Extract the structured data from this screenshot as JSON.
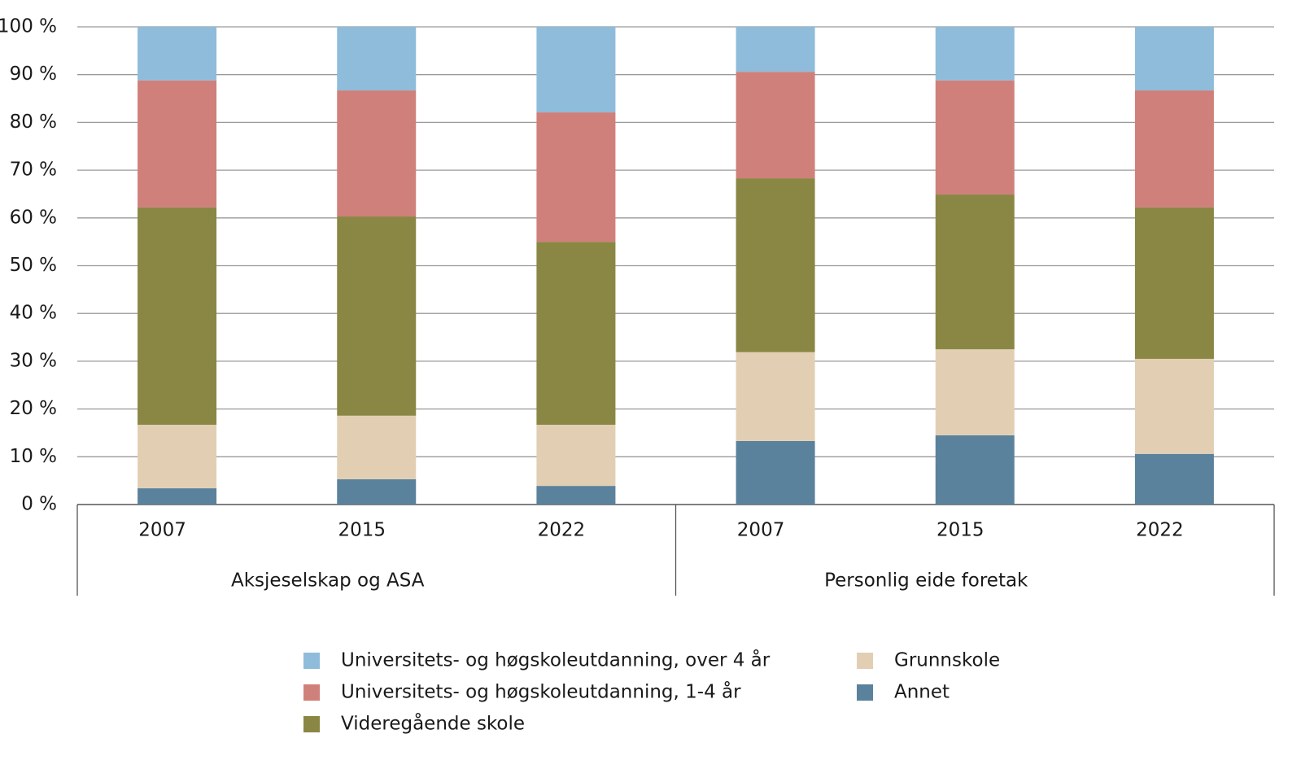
{
  "chart_data": {
    "type": "stacked-bar",
    "groups": [
      {
        "name": "Aksjeselskap og ASA",
        "categories": [
          "2007",
          "2015",
          "2022"
        ]
      },
      {
        "name": "Personlig eide foretak",
        "categories": [
          "2007",
          "2015",
          "2022"
        ]
      }
    ],
    "series": [
      {
        "name": "Universitets- og høgskoleutdanning, over 4 år",
        "color": "#8fbcdb",
        "values": [
          11.2,
          13.3,
          17.9,
          9.4,
          11.2,
          13.3
        ]
      },
      {
        "name": "Universitets- og høgskoleutdanning, 1-4 år",
        "color": "#d0807a",
        "values": [
          26.6,
          26.4,
          27.1,
          22.3,
          23.9,
          24.5
        ]
      },
      {
        "name": "Videregående skole",
        "color": "#8a8744",
        "values": [
          45.5,
          41.7,
          38.3,
          36.4,
          32.4,
          31.7
        ]
      },
      {
        "name": "Grunnskole",
        "color": "#e2cfb3",
        "values": [
          13.3,
          13.3,
          12.8,
          18.6,
          18.0,
          19.9
        ]
      },
      {
        "name": "Annet",
        "color": "#5b829c",
        "values": [
          3.4,
          5.3,
          3.9,
          13.3,
          14.5,
          10.6
        ]
      }
    ],
    "ylim": [
      0,
      100
    ],
    "yticks": [
      {
        "value": 0,
        "label": "0 %"
      },
      {
        "value": 10,
        "label": "10 %"
      },
      {
        "value": 20,
        "label": "20 %"
      },
      {
        "value": 30,
        "label": "30 %"
      },
      {
        "value": 40,
        "label": "40 %"
      },
      {
        "value": 50,
        "label": "50 %"
      },
      {
        "value": 60,
        "label": "60 %"
      },
      {
        "value": 70,
        "label": "70 %"
      },
      {
        "value": 80,
        "label": "80 %"
      },
      {
        "value": 90,
        "label": "90 %"
      },
      {
        "value": 100,
        "label": "100 %"
      }
    ],
    "grid": true
  }
}
